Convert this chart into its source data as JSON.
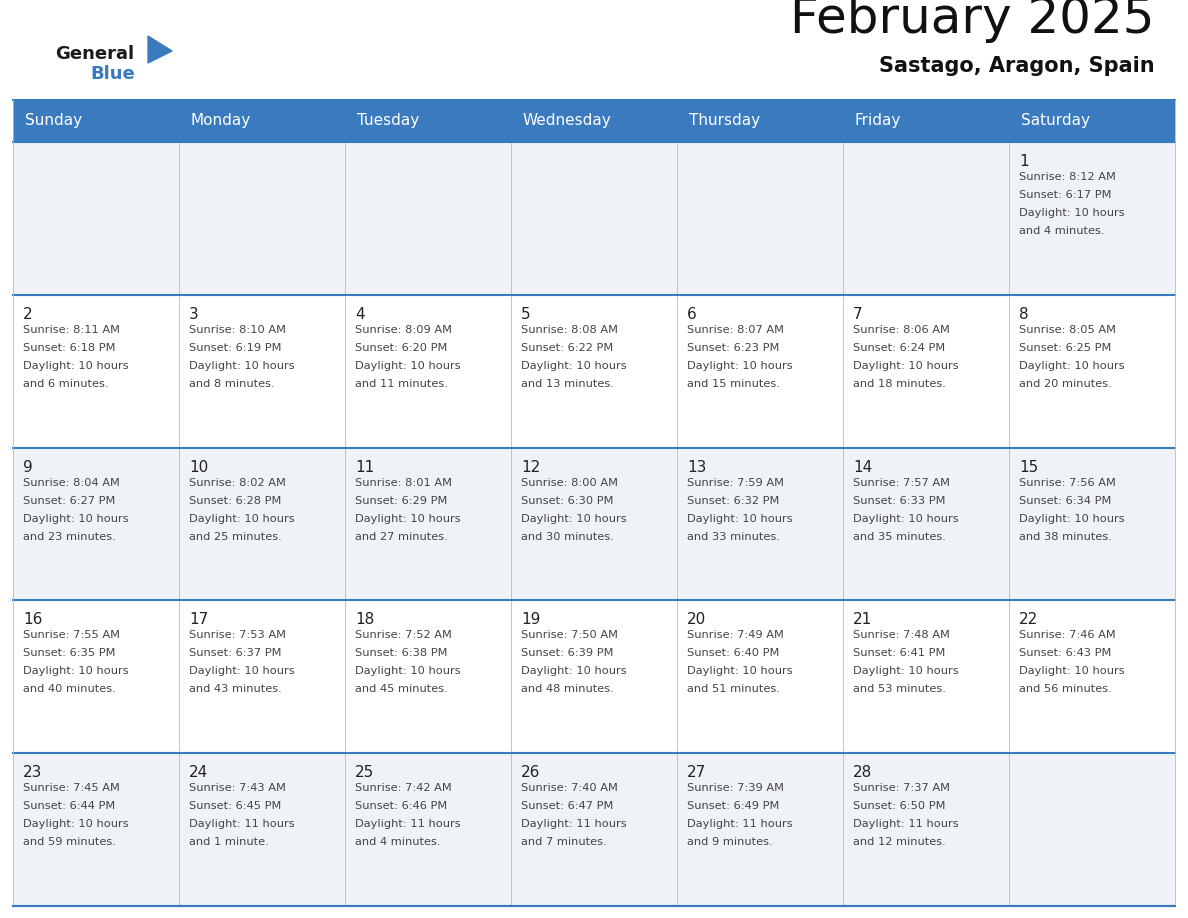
{
  "title": "February 2025",
  "subtitle": "Sastago, Aragon, Spain",
  "header_bg": "#3a7bbf",
  "header_text_color": "#ffffff",
  "days_of_week": [
    "Sunday",
    "Monday",
    "Tuesday",
    "Wednesday",
    "Thursday",
    "Friday",
    "Saturday"
  ],
  "cell_bg_week1": "#eff3f8",
  "cell_bg_week2": "#ffffff",
  "cell_bg_week3": "#eff3f8",
  "cell_bg_week4": "#ffffff",
  "cell_bg_week5": "#eff3f8",
  "divider_color": "#3a7bbf",
  "text_color": "#444444",
  "day_num_color": "#222222",
  "calendar": [
    [
      null,
      null,
      null,
      null,
      null,
      null,
      {
        "day": "1",
        "sunrise": "Sunrise: 8:12 AM",
        "sunset": "Sunset: 6:17 PM",
        "daylight": "Daylight: 10 hours",
        "daylight2": "and 4 minutes."
      }
    ],
    [
      {
        "day": "2",
        "sunrise": "Sunrise: 8:11 AM",
        "sunset": "Sunset: 6:18 PM",
        "daylight": "Daylight: 10 hours",
        "daylight2": "and 6 minutes."
      },
      {
        "day": "3",
        "sunrise": "Sunrise: 8:10 AM",
        "sunset": "Sunset: 6:19 PM",
        "daylight": "Daylight: 10 hours",
        "daylight2": "and 8 minutes."
      },
      {
        "day": "4",
        "sunrise": "Sunrise: 8:09 AM",
        "sunset": "Sunset: 6:20 PM",
        "daylight": "Daylight: 10 hours",
        "daylight2": "and 11 minutes."
      },
      {
        "day": "5",
        "sunrise": "Sunrise: 8:08 AM",
        "sunset": "Sunset: 6:22 PM",
        "daylight": "Daylight: 10 hours",
        "daylight2": "and 13 minutes."
      },
      {
        "day": "6",
        "sunrise": "Sunrise: 8:07 AM",
        "sunset": "Sunset: 6:23 PM",
        "daylight": "Daylight: 10 hours",
        "daylight2": "and 15 minutes."
      },
      {
        "day": "7",
        "sunrise": "Sunrise: 8:06 AM",
        "sunset": "Sunset: 6:24 PM",
        "daylight": "Daylight: 10 hours",
        "daylight2": "and 18 minutes."
      },
      {
        "day": "8",
        "sunrise": "Sunrise: 8:05 AM",
        "sunset": "Sunset: 6:25 PM",
        "daylight": "Daylight: 10 hours",
        "daylight2": "and 20 minutes."
      }
    ],
    [
      {
        "day": "9",
        "sunrise": "Sunrise: 8:04 AM",
        "sunset": "Sunset: 6:27 PM",
        "daylight": "Daylight: 10 hours",
        "daylight2": "and 23 minutes."
      },
      {
        "day": "10",
        "sunrise": "Sunrise: 8:02 AM",
        "sunset": "Sunset: 6:28 PM",
        "daylight": "Daylight: 10 hours",
        "daylight2": "and 25 minutes."
      },
      {
        "day": "11",
        "sunrise": "Sunrise: 8:01 AM",
        "sunset": "Sunset: 6:29 PM",
        "daylight": "Daylight: 10 hours",
        "daylight2": "and 27 minutes."
      },
      {
        "day": "12",
        "sunrise": "Sunrise: 8:00 AM",
        "sunset": "Sunset: 6:30 PM",
        "daylight": "Daylight: 10 hours",
        "daylight2": "and 30 minutes."
      },
      {
        "day": "13",
        "sunrise": "Sunrise: 7:59 AM",
        "sunset": "Sunset: 6:32 PM",
        "daylight": "Daylight: 10 hours",
        "daylight2": "and 33 minutes."
      },
      {
        "day": "14",
        "sunrise": "Sunrise: 7:57 AM",
        "sunset": "Sunset: 6:33 PM",
        "daylight": "Daylight: 10 hours",
        "daylight2": "and 35 minutes."
      },
      {
        "day": "15",
        "sunrise": "Sunrise: 7:56 AM",
        "sunset": "Sunset: 6:34 PM",
        "daylight": "Daylight: 10 hours",
        "daylight2": "and 38 minutes."
      }
    ],
    [
      {
        "day": "16",
        "sunrise": "Sunrise: 7:55 AM",
        "sunset": "Sunset: 6:35 PM",
        "daylight": "Daylight: 10 hours",
        "daylight2": "and 40 minutes."
      },
      {
        "day": "17",
        "sunrise": "Sunrise: 7:53 AM",
        "sunset": "Sunset: 6:37 PM",
        "daylight": "Daylight: 10 hours",
        "daylight2": "and 43 minutes."
      },
      {
        "day": "18",
        "sunrise": "Sunrise: 7:52 AM",
        "sunset": "Sunset: 6:38 PM",
        "daylight": "Daylight: 10 hours",
        "daylight2": "and 45 minutes."
      },
      {
        "day": "19",
        "sunrise": "Sunrise: 7:50 AM",
        "sunset": "Sunset: 6:39 PM",
        "daylight": "Daylight: 10 hours",
        "daylight2": "and 48 minutes."
      },
      {
        "day": "20",
        "sunrise": "Sunrise: 7:49 AM",
        "sunset": "Sunset: 6:40 PM",
        "daylight": "Daylight: 10 hours",
        "daylight2": "and 51 minutes."
      },
      {
        "day": "21",
        "sunrise": "Sunrise: 7:48 AM",
        "sunset": "Sunset: 6:41 PM",
        "daylight": "Daylight: 10 hours",
        "daylight2": "and 53 minutes."
      },
      {
        "day": "22",
        "sunrise": "Sunrise: 7:46 AM",
        "sunset": "Sunset: 6:43 PM",
        "daylight": "Daylight: 10 hours",
        "daylight2": "and 56 minutes."
      }
    ],
    [
      {
        "day": "23",
        "sunrise": "Sunrise: 7:45 AM",
        "sunset": "Sunset: 6:44 PM",
        "daylight": "Daylight: 10 hours",
        "daylight2": "and 59 minutes."
      },
      {
        "day": "24",
        "sunrise": "Sunrise: 7:43 AM",
        "sunset": "Sunset: 6:45 PM",
        "daylight": "Daylight: 11 hours",
        "daylight2": "and 1 minute."
      },
      {
        "day": "25",
        "sunrise": "Sunrise: 7:42 AM",
        "sunset": "Sunset: 6:46 PM",
        "daylight": "Daylight: 11 hours",
        "daylight2": "and 4 minutes."
      },
      {
        "day": "26",
        "sunrise": "Sunrise: 7:40 AM",
        "sunset": "Sunset: 6:47 PM",
        "daylight": "Daylight: 11 hours",
        "daylight2": "and 7 minutes."
      },
      {
        "day": "27",
        "sunrise": "Sunrise: 7:39 AM",
        "sunset": "Sunset: 6:49 PM",
        "daylight": "Daylight: 11 hours",
        "daylight2": "and 9 minutes."
      },
      {
        "day": "28",
        "sunrise": "Sunrise: 7:37 AM",
        "sunset": "Sunset: 6:50 PM",
        "daylight": "Daylight: 11 hours",
        "daylight2": "and 12 minutes."
      },
      null
    ]
  ],
  "logo_general_color": "#1a1a1a",
  "logo_blue_color": "#3a7bbf",
  "logo_triangle_color": "#3a7bbf"
}
